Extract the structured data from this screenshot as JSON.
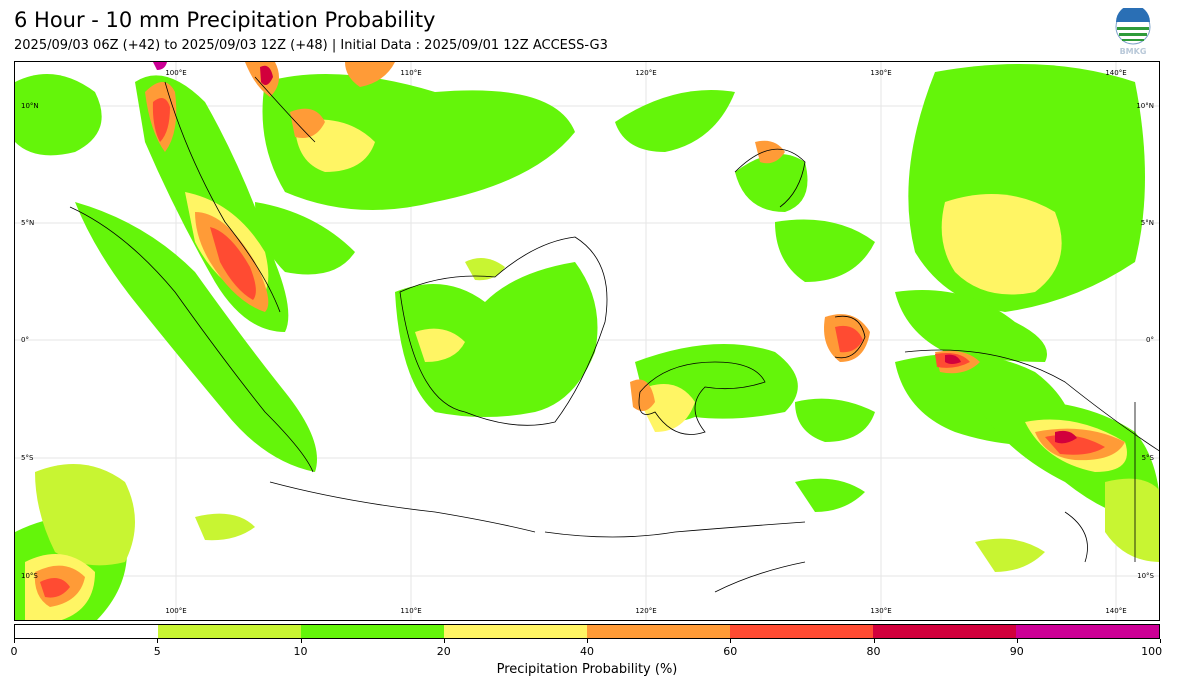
{
  "header": {
    "title": "6 Hour - 10 mm Precipitation Probability",
    "subtitle": "2025/09/03 06Z (+42) to 2025/09/03 12Z (+48) | Initial Data : 2025/09/01 12Z ACCESS-G3",
    "logo_text": "BMKG"
  },
  "map": {
    "lon_labels": [
      "100°E",
      "110°E",
      "120°E",
      "130°E",
      "140°E"
    ],
    "lat_labels": [
      "10°N",
      "5°N",
      "0°",
      "5°S",
      "10°S"
    ]
  },
  "legend": {
    "label": "Precipitation Probability (%)",
    "ticks": [
      "0",
      "5",
      "10",
      "20",
      "40",
      "60",
      "80",
      "90",
      "100"
    ],
    "colors": [
      "#ffffff",
      "#c8f532",
      "#64f50a",
      "#fff564",
      "#ff9b37",
      "#ff4b32",
      "#d2003c",
      "#cd0096"
    ]
  }
}
